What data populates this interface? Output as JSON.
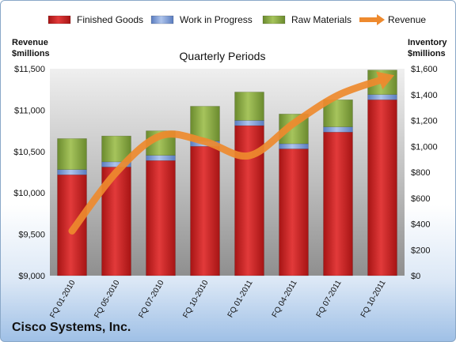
{
  "chart_data": {
    "type": "bar",
    "stacked": true,
    "title": "Quarterly Periods",
    "categories": [
      "FQ 01-2010",
      "FQ 05-2010",
      "FQ 07-2010",
      "FQ 10-2010",
      "FQ 01-2011",
      "FQ 04-2011",
      "FQ 07-2011",
      "FQ 10-2011"
    ],
    "series": [
      {
        "name": "Finished Goods",
        "axis": "right",
        "color": "#d02a2a",
        "values": [
          780,
          840,
          890,
          1000,
          1160,
          980,
          1110,
          1360
        ]
      },
      {
        "name": "Work in Progress",
        "axis": "right",
        "color": "#8aa6d8",
        "values": [
          40,
          40,
          40,
          40,
          40,
          40,
          40,
          40
        ]
      },
      {
        "name": "Raw Materials",
        "axis": "right",
        "color": "#8fb04a",
        "values": [
          240,
          200,
          190,
          270,
          220,
          230,
          210,
          190
        ]
      },
      {
        "name": "Revenue",
        "axis": "left",
        "type": "line",
        "color": "#ee8a2e",
        "values": [
          9540,
          10250,
          10690,
          10620,
          10450,
          10840,
          11180,
          11370
        ]
      }
    ],
    "left_axis": {
      "label": [
        "Revenue",
        "$millions"
      ],
      "ylim": [
        9000,
        11500
      ],
      "ticks": [
        "$9,000",
        "$9,500",
        "$10,000",
        "$10,500",
        "$11,000",
        "$11,500"
      ]
    },
    "right_axis": {
      "label": [
        "Inventory",
        "$millions"
      ],
      "ylim": [
        0,
        1600
      ],
      "ticks": [
        "$0",
        "$200",
        "$400",
        "$600",
        "$800",
        "$1,000",
        "$1,200",
        "$1,400",
        "$1,600"
      ]
    },
    "legend_position": "top",
    "grid": false
  },
  "footer": {
    "company": "Cisco Systems, Inc."
  }
}
